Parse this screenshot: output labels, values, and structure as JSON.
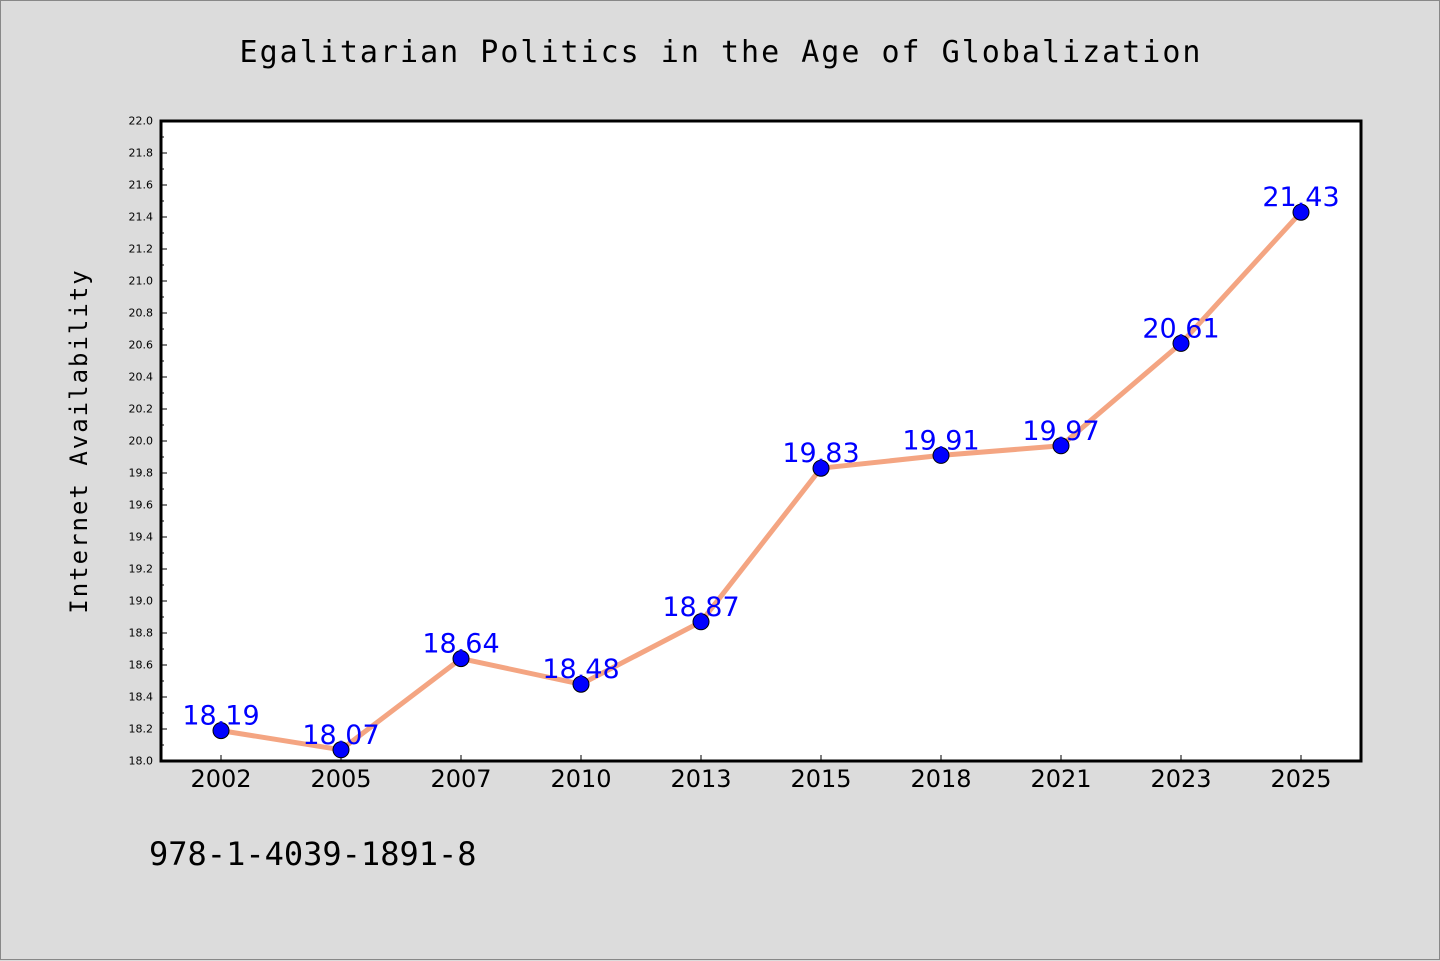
{
  "chart_data": {
    "type": "line",
    "title": "Egalitarian Politics in the Age of Globalization",
    "xlabel": "",
    "ylabel": "Internet Availability",
    "categories": [
      "2002",
      "2005",
      "2007",
      "2010",
      "2013",
      "2015",
      "2018",
      "2021",
      "2023",
      "2025"
    ],
    "values": [
      18.19,
      18.07,
      18.64,
      18.48,
      18.87,
      19.83,
      19.91,
      19.97,
      20.61,
      21.43
    ],
    "data_labels": [
      "18.19",
      "18.07",
      "18.64",
      "18.48",
      "18.87",
      "19.83",
      "19.91",
      "19.97",
      "20.61",
      "21.43"
    ],
    "ylim": [
      18.0,
      22.0
    ],
    "y_ticks": [
      "18.0",
      "18.2",
      "18.4",
      "18.6",
      "18.8",
      "19.0",
      "19.2",
      "19.4",
      "19.6",
      "19.8",
      "20.0",
      "20.2",
      "20.4",
      "20.6",
      "20.8",
      "21.0",
      "21.2",
      "21.4",
      "21.6",
      "21.8",
      "22.0"
    ],
    "grid": false,
    "line_color": "#f4a582",
    "marker_color": "#0000ff",
    "label_color": "#0000ff"
  },
  "footer": {
    "code": "978-1-4039-1891-8"
  }
}
